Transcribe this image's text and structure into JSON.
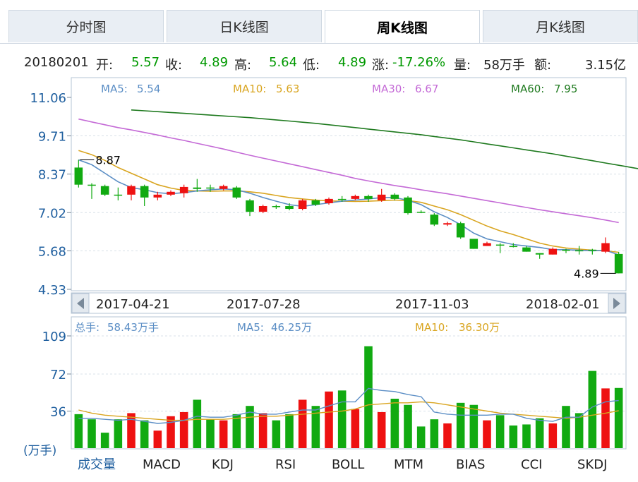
{
  "tabs": [
    {
      "label": "分时图",
      "active": false
    },
    {
      "label": "日K线图",
      "active": false
    },
    {
      "label": "周K线图",
      "active": true
    },
    {
      "label": "月K线图",
      "active": false
    }
  ],
  "info": {
    "date": "20180201",
    "open_label": "开:",
    "open": "5.57",
    "close_label": "收:",
    "close": "4.89",
    "high_label": "高:",
    "high": "5.64",
    "low_label": "低:",
    "low": "4.89",
    "change_label": "涨:",
    "change": "-17.26%",
    "volume_label": "量:",
    "volume": "58万手",
    "amount_label": "额:",
    "amount": "3.15亿"
  },
  "colors": {
    "up": "#ee1111",
    "down": "#11aa11",
    "ma5": "#5b8ec5",
    "ma10": "#d9a520",
    "ma30": "#c46ad6",
    "ma60": "#1f7a1f",
    "axis": "#1f5f9f"
  },
  "chart_data": [
    {
      "type": "candlestick",
      "ylim": [
        4.33,
        11.06
      ],
      "yticks": [
        "11.06",
        "9.71",
        "8.37",
        "7.02",
        "5.68",
        "4.33"
      ],
      "xlabels": [
        "2017-04-21",
        "2017-07-28",
        "2017-11-03",
        "2018-02-01"
      ],
      "legend": [
        {
          "label": "MA5:",
          "value": "5.54"
        },
        {
          "label": "MA10:",
          "value": "5.63"
        },
        {
          "label": "MA30:",
          "value": "6.67"
        },
        {
          "label": "MA60:",
          "value": "7.95"
        }
      ],
      "annotations": {
        "max": "8.87",
        "min": "4.89"
      },
      "candles": [
        [
          8.6,
          8.0,
          8.87,
          7.9
        ],
        [
          8.0,
          8.0,
          8.05,
          7.5
        ],
        [
          7.95,
          7.65,
          8.0,
          7.6
        ],
        [
          7.65,
          7.65,
          7.9,
          7.45
        ],
        [
          7.65,
          7.95,
          8.0,
          7.45
        ],
        [
          7.95,
          7.55,
          8.0,
          7.25
        ],
        [
          7.55,
          7.65,
          7.75,
          7.45
        ],
        [
          7.65,
          7.75,
          7.8,
          7.6
        ],
        [
          7.7,
          7.92,
          8.0,
          7.55
        ],
        [
          7.9,
          7.85,
          8.2,
          7.75
        ],
        [
          7.9,
          7.9,
          8.0,
          7.75
        ],
        [
          7.85,
          7.95,
          8.0,
          7.8
        ],
        [
          7.9,
          7.55,
          7.95,
          7.5
        ],
        [
          7.45,
          7.05,
          7.5,
          6.9
        ],
        [
          7.05,
          7.25,
          7.3,
          7.0
        ],
        [
          7.25,
          7.25,
          7.3,
          7.15
        ],
        [
          7.25,
          7.15,
          7.35,
          7.1
        ],
        [
          7.15,
          7.45,
          7.5,
          7.1
        ],
        [
          7.45,
          7.3,
          7.5,
          7.25
        ],
        [
          7.35,
          7.5,
          7.55,
          7.3
        ],
        [
          7.5,
          7.5,
          7.6,
          7.4
        ],
        [
          7.5,
          7.6,
          7.65,
          7.45
        ],
        [
          7.6,
          7.5,
          7.65,
          7.4
        ],
        [
          7.45,
          7.65,
          7.85,
          7.4
        ],
        [
          7.65,
          7.5,
          7.7,
          7.45
        ],
        [
          7.55,
          7.0,
          7.6,
          6.95
        ],
        [
          7.05,
          7.05,
          7.1,
          7.0
        ],
        [
          6.95,
          6.6,
          7.0,
          6.55
        ],
        [
          6.6,
          6.65,
          6.7,
          6.55
        ],
        [
          6.65,
          6.15,
          6.7,
          6.1
        ],
        [
          6.1,
          5.75,
          6.1,
          5.75
        ],
        [
          5.85,
          5.95,
          6.0,
          5.85
        ],
        [
          5.9,
          5.9,
          5.95,
          5.6
        ],
        [
          5.85,
          5.85,
          5.95,
          5.8
        ],
        [
          5.8,
          5.65,
          5.85,
          5.65
        ],
        [
          5.6,
          5.55,
          5.6,
          5.4
        ],
        [
          5.55,
          5.75,
          5.8,
          5.55
        ],
        [
          5.72,
          5.72,
          5.75,
          5.6
        ],
        [
          5.7,
          5.7,
          5.85,
          5.55
        ],
        [
          5.72,
          5.72,
          5.75,
          5.55
        ],
        [
          5.65,
          5.95,
          6.15,
          5.6
        ],
        [
          5.57,
          4.89,
          5.64,
          4.89
        ]
      ],
      "ma5": [
        8.87,
        8.7,
        8.4,
        8.1,
        7.9,
        7.82,
        7.72,
        7.68,
        7.72,
        7.78,
        7.82,
        7.85,
        7.82,
        7.7,
        7.55,
        7.42,
        7.3,
        7.24,
        7.3,
        7.36,
        7.42,
        7.46,
        7.5,
        7.55,
        7.55,
        7.45,
        7.3,
        7.05,
        6.85,
        6.6,
        6.3,
        6.1,
        6.0,
        5.9,
        5.85,
        5.8,
        5.72,
        5.72,
        5.7,
        5.68,
        5.7,
        5.54
      ],
      "ma10": [
        9.2,
        9.05,
        8.85,
        8.6,
        8.4,
        8.2,
        8.0,
        7.88,
        7.8,
        7.78,
        7.77,
        7.78,
        7.78,
        7.75,
        7.7,
        7.62,
        7.55,
        7.5,
        7.46,
        7.43,
        7.42,
        7.41,
        7.42,
        7.44,
        7.46,
        7.44,
        7.38,
        7.25,
        7.12,
        6.95,
        6.75,
        6.55,
        6.38,
        6.25,
        6.1,
        5.95,
        5.85,
        5.78,
        5.74,
        5.7,
        5.68,
        5.63
      ],
      "ma30": [
        10.3,
        10.2,
        10.1,
        10.0,
        9.92,
        9.83,
        9.74,
        9.64,
        9.55,
        9.45,
        9.35,
        9.25,
        9.14,
        9.03,
        8.93,
        8.83,
        8.73,
        8.63,
        8.53,
        8.43,
        8.33,
        8.22,
        8.13,
        8.05,
        7.97,
        7.9,
        7.82,
        7.75,
        7.68,
        7.6,
        7.52,
        7.44,
        7.36,
        7.28,
        7.2,
        7.12,
        7.05,
        6.98,
        6.91,
        6.84,
        6.76,
        6.67
      ],
      "ma60_start_index": 4,
      "ma60": [
        10.62,
        10.59,
        10.56,
        10.53,
        10.5,
        10.47,
        10.44,
        10.41,
        10.38,
        10.35,
        10.31,
        10.27,
        10.23,
        10.19,
        10.15,
        10.1,
        10.05,
        10.0,
        9.95,
        9.9,
        9.85,
        9.8,
        9.75,
        9.69,
        9.63,
        9.57,
        9.5,
        9.43,
        9.36,
        9.29,
        9.22,
        9.15,
        9.08,
        9.0,
        8.92,
        8.84,
        8.76,
        8.68,
        8.6,
        8.52,
        8.44,
        8.35
      ]
    },
    {
      "type": "bar",
      "ylim": [
        0,
        109
      ],
      "yticks": [
        "109",
        "72",
        "36"
      ],
      "unit_label": "(万手)",
      "legend": [
        {
          "label": "总手:",
          "value": "58.43万手"
        },
        {
          "label": "MA5:",
          "value": "46.25万"
        },
        {
          "label": "MA10:",
          "value": "36.30万"
        }
      ],
      "values": [
        33,
        28,
        15,
        28,
        34,
        27,
        17,
        31,
        35,
        47,
        28,
        27,
        33,
        41,
        34,
        27,
        33,
        47,
        41,
        55,
        56,
        38,
        99,
        35,
        48,
        42,
        21,
        28,
        24,
        44,
        42,
        27,
        32,
        22,
        23,
        29,
        24,
        41,
        34,
        75,
        58,
        58.43
      ],
      "ma5": [
        29,
        29,
        28,
        27,
        28,
        26,
        24,
        25,
        27,
        31,
        30,
        30,
        32,
        35,
        33,
        33,
        35,
        37,
        37,
        41,
        45,
        45,
        58,
        56,
        55,
        52,
        50,
        35,
        33,
        32,
        32,
        32,
        33,
        33,
        29,
        27,
        26,
        30,
        30,
        40,
        45,
        46.25
      ],
      "ma10": [
        37,
        34,
        32,
        31,
        30,
        29,
        28,
        27,
        27,
        28,
        28,
        28,
        29,
        30,
        31,
        31,
        32,
        33,
        34,
        35,
        36,
        38,
        42,
        43,
        44,
        44,
        45,
        44,
        42,
        40,
        38,
        36,
        34,
        33,
        32,
        31,
        30,
        29,
        30,
        32,
        34,
        36.3
      ],
      "indicators": [
        "成交量",
        "MACD",
        "KDJ",
        "RSI",
        "BOLL",
        "MTM",
        "BIAS",
        "CCI",
        "SKDJ"
      ]
    }
  ]
}
